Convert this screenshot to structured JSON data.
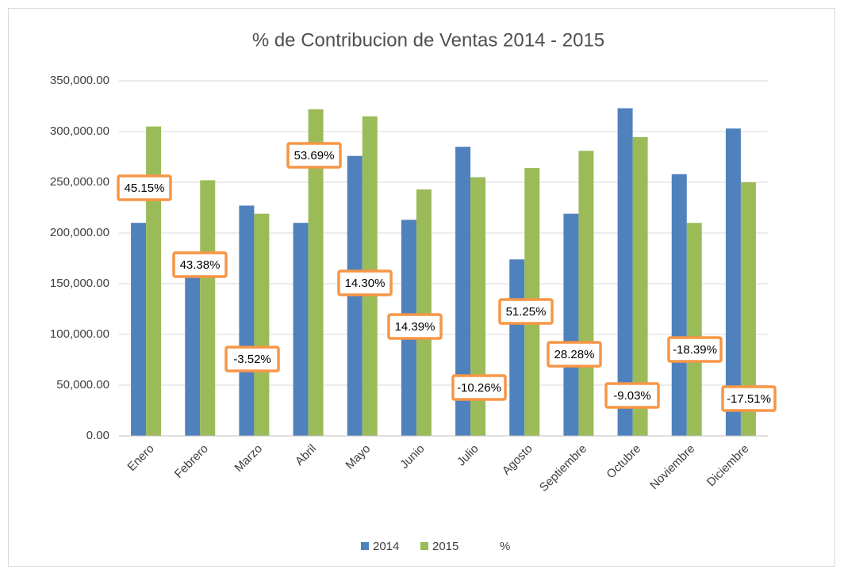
{
  "chart_data": {
    "type": "bar",
    "title": "% de Contribucion de Ventas 2014 - 2015",
    "categories": [
      "Enero",
      "Febrero",
      "Marzo",
      "Abril",
      "Mayo",
      "Junio",
      "Julio",
      "Agosto",
      "Septiembre",
      "Octubre",
      "Noviembre",
      "Diciembre"
    ],
    "series": [
      {
        "name": "2014",
        "color": "#4f81bd",
        "values": [
          210000,
          175800,
          227000,
          210000,
          276000,
          213000,
          285000,
          174000,
          219000,
          323000,
          258000,
          303000
        ]
      },
      {
        "name": "2015",
        "color": "#9bbb59",
        "values": [
          305000,
          252000,
          219000,
          322000,
          315000,
          243000,
          255000,
          264000,
          281000,
          294500,
          210000,
          250000
        ]
      },
      {
        "name": "%",
        "color": "#f79646",
        "values": [
          45.15,
          43.38,
          -3.52,
          53.69,
          14.3,
          14.39,
          -10.26,
          51.25,
          28.28,
          -9.03,
          -18.39,
          -17.51
        ],
        "value_labels": [
          "45.15%",
          "43.38%",
          "-3.52%",
          "53.69%",
          "14.30%",
          "14.39%",
          "-10.26%",
          "51.25%",
          "28.28%",
          "-9.03%",
          "-18.39%",
          "-17.51%"
        ]
      }
    ],
    "ylim": [
      0,
      350000
    ],
    "yticks": [
      {
        "value": 0,
        "label": "0.00"
      },
      {
        "value": 50000,
        "label": "50,000.00"
      },
      {
        "value": 100000,
        "label": "100,000.00"
      },
      {
        "value": 150000,
        "label": "150,000.00"
      },
      {
        "value": 200000,
        "label": "200,000.00"
      },
      {
        "value": 250000,
        "label": "250,000.00"
      },
      {
        "value": 300000,
        "label": "300,000.00"
      },
      {
        "value": 350000,
        "label": "350,000.00"
      }
    ],
    "grid": true,
    "legend": "bottom"
  }
}
